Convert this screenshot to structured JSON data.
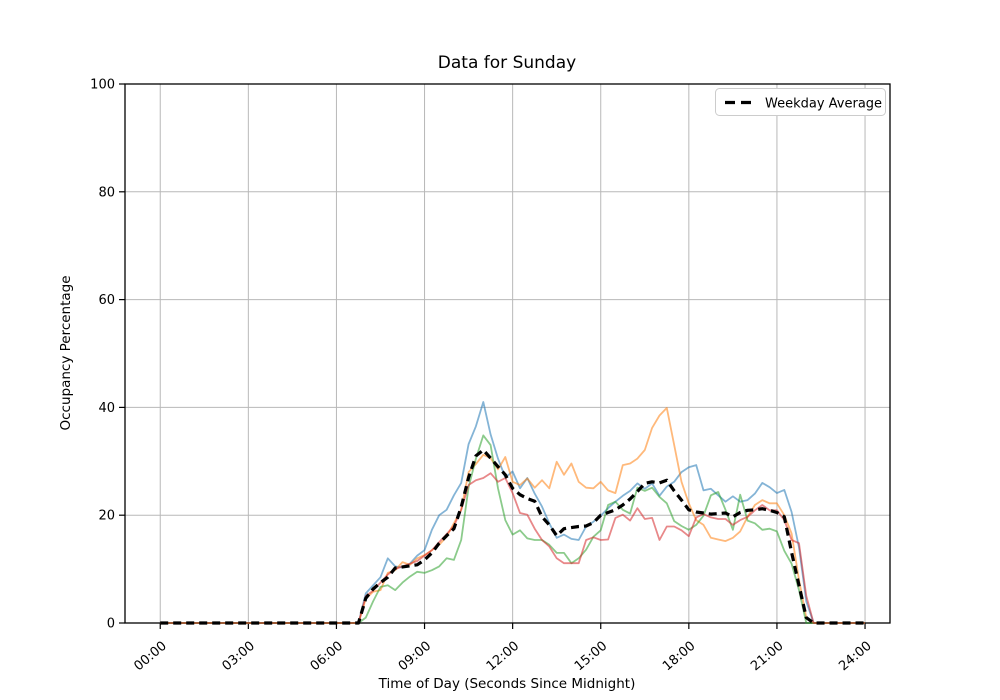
{
  "figure": {
    "title": "Data for Sunday",
    "xlabel": "Time of Day (Seconds Since Midnight)",
    "ylabel": "Occupancy Percentage",
    "background_color": "#ffffff",
    "grid_color": "#b8b8b8",
    "spine_color": "#000000"
  },
  "legend": {
    "location": "upper right",
    "entries": [
      {
        "label": "Weekday Average",
        "color": "#000000",
        "style": "dashed"
      }
    ]
  },
  "chart_data": {
    "type": "line",
    "title": "Data for Sunday",
    "xlabel": "Time of Day (Seconds Since Midnight)",
    "ylabel": "Occupancy Percentage",
    "xlim_hours": [
      -1.2,
      24.85
    ],
    "ylim": [
      0,
      100
    ],
    "grid": true,
    "xticks": {
      "positions_hours": [
        0,
        3,
        6,
        9,
        12,
        15,
        18,
        21,
        24
      ],
      "labels": [
        "00:00",
        "03:00",
        "06:00",
        "09:00",
        "12:00",
        "15:00",
        "18:00",
        "21:00",
        "24:00"
      ],
      "rotation_deg": 40
    },
    "yticks": {
      "positions": [
        0,
        20,
        40,
        60,
        80,
        100
      ],
      "labels": [
        "0",
        "20",
        "40",
        "60",
        "80",
        "100"
      ]
    },
    "x_hours": {
      "start": 0,
      "step": 0.25,
      "count": 97
    },
    "series": [
      {
        "name": "occupancy-line-1",
        "color": "#1f77b4",
        "opacity": 0.55,
        "style": "solid",
        "width": 1.8,
        "in_legend": false,
        "values": [
          0,
          0,
          0,
          0,
          0,
          0,
          0,
          0,
          0,
          0,
          0,
          0,
          0,
          0,
          0,
          0,
          0,
          0,
          0,
          0,
          0,
          0,
          0,
          0,
          0,
          0,
          0,
          0,
          5.5,
          7,
          8.5,
          12,
          10.5,
          10.3,
          11,
          12.5,
          13.5,
          17.3,
          20,
          21,
          23.7,
          26,
          33.2,
          36.5,
          41,
          35,
          30.5,
          27,
          28.1,
          25,
          26.9,
          24,
          21.6,
          18.5,
          15.8,
          16.4,
          15.6,
          15.4,
          17.9,
          18.8,
          19.9,
          21.3,
          22.5,
          23.6,
          24.5,
          25.9,
          24.9,
          25.9,
          23.6,
          25.3,
          26.2,
          28,
          28.9,
          29.3,
          24.6,
          24.9,
          23.7,
          22.5,
          23.5,
          22.5,
          22.8,
          24,
          26,
          25.2,
          24.1,
          24.7,
          20.6,
          14,
          4,
          0,
          0,
          0,
          0,
          0,
          0,
          0,
          0
        ]
      },
      {
        "name": "occupancy-line-2",
        "color": "#ff7f0e",
        "opacity": 0.55,
        "style": "solid",
        "width": 1.8,
        "in_legend": false,
        "values": [
          0,
          0,
          0,
          0,
          0,
          0,
          0,
          0,
          0,
          0,
          0,
          0,
          0,
          0,
          0,
          0,
          0,
          0,
          0,
          0,
          0,
          0,
          0,
          0,
          0,
          0,
          0,
          0,
          4.5,
          5.8,
          6.1,
          9.3,
          9.8,
          11.3,
          10.8,
          12,
          12.6,
          13.5,
          14.5,
          16,
          18.5,
          21,
          28,
          29.5,
          31.2,
          30.6,
          28.5,
          30.8,
          26.2,
          25.6,
          26.8,
          25.1,
          26.5,
          25,
          29.9,
          27.5,
          29.6,
          26.2,
          25.1,
          25,
          26.2,
          24.6,
          24.1,
          29.3,
          29.6,
          30.5,
          32.1,
          36.2,
          38.5,
          39.9,
          33,
          26.2,
          22.2,
          19.1,
          18.2,
          15.8,
          15.5,
          15.2,
          15.8,
          17,
          19.7,
          21.9,
          22.8,
          22.2,
          22.2,
          20,
          16.6,
          8,
          1,
          0,
          0,
          0,
          0,
          0,
          0,
          0,
          0
        ]
      },
      {
        "name": "occupancy-line-3",
        "color": "#2ca02c",
        "opacity": 0.55,
        "style": "solid",
        "width": 1.8,
        "in_legend": false,
        "values": [
          0,
          0,
          0,
          0,
          0,
          0,
          0,
          0,
          0,
          0,
          0,
          0,
          0,
          0,
          0,
          0,
          0,
          0,
          0,
          0,
          0,
          0,
          0,
          0,
          0,
          0,
          0,
          0,
          1,
          4,
          6.7,
          7,
          6.1,
          7.5,
          8.6,
          9.5,
          9.3,
          9.8,
          10.5,
          12,
          11.7,
          15.4,
          25.2,
          30.5,
          34.8,
          33,
          25,
          19.1,
          16.4,
          17.2,
          15.7,
          15.4,
          15.4,
          14.5,
          13,
          13,
          11.1,
          12,
          13.6,
          16,
          17.2,
          21.9,
          22.5,
          21,
          20.3,
          25.1,
          24.5,
          25.1,
          23.4,
          22.2,
          18.9,
          18,
          17.3,
          18.2,
          19.9,
          23.7,
          24.3,
          21,
          17.3,
          23.8,
          19,
          18.5,
          17.3,
          17.5,
          17,
          13.4,
          11,
          6.1,
          0,
          0,
          0,
          0,
          0,
          0,
          0,
          0,
          0
        ]
      },
      {
        "name": "occupancy-line-4",
        "color": "#d62728",
        "opacity": 0.55,
        "style": "solid",
        "width": 1.8,
        "in_legend": false,
        "values": [
          0,
          0,
          0,
          0,
          0,
          0,
          0,
          0,
          0,
          0,
          0,
          0,
          0,
          0,
          0,
          0,
          0,
          0,
          0,
          0,
          0,
          0,
          0,
          0,
          0,
          0,
          0,
          0,
          5,
          6,
          7.5,
          9,
          10,
          10.5,
          11,
          11.5,
          12.5,
          13.5,
          15,
          16.5,
          18,
          21,
          25.6,
          26.5,
          26.9,
          27.8,
          26.2,
          26.9,
          24.1,
          20.4,
          20.1,
          17.5,
          15.4,
          14.2,
          12,
          11.1,
          11.1,
          11.1,
          15.4,
          15.9,
          15.4,
          15.5,
          19.5,
          20.1,
          19,
          21.3,
          19.3,
          19.5,
          15.4,
          17.9,
          17.9,
          17.2,
          16.1,
          19.6,
          20.2,
          19.6,
          19.3,
          19.3,
          18.2,
          19.1,
          19.7,
          20.9,
          21.9,
          20.9,
          20.9,
          19.1,
          15.4,
          14.8,
          5,
          0,
          0,
          0,
          0,
          0,
          0,
          0,
          0
        ]
      },
      {
        "name": "weekday-average",
        "label": "Weekday Average",
        "color": "#000000",
        "opacity": 1,
        "style": "dashed",
        "width": 3.2,
        "in_legend": true,
        "values": [
          0,
          0,
          0,
          0,
          0,
          0,
          0,
          0,
          0,
          0,
          0,
          0,
          0,
          0,
          0,
          0,
          0,
          0,
          0,
          0,
          0,
          0,
          0,
          0,
          0,
          0,
          0,
          0,
          4.6,
          6.3,
          7.5,
          8.5,
          10.2,
          10.4,
          10.6,
          10.8,
          11.7,
          13,
          14.8,
          16.2,
          17.5,
          21.5,
          27,
          31,
          32.1,
          30.6,
          29,
          27.5,
          25,
          23.8,
          23.1,
          22.6,
          19.7,
          18.2,
          16.2,
          17.5,
          17.7,
          17.9,
          18,
          18.6,
          20,
          20.5,
          21,
          21.9,
          23,
          24.4,
          25.9,
          26.2,
          26,
          26.5,
          24.5,
          22.8,
          21,
          20.6,
          20.4,
          20.2,
          20.3,
          20.4,
          19.7,
          20.5,
          20.9,
          21,
          21.2,
          20.9,
          20.5,
          19.7,
          13.1,
          7,
          1,
          0,
          0,
          0,
          0,
          0,
          0,
          0,
          0
        ]
      }
    ]
  }
}
